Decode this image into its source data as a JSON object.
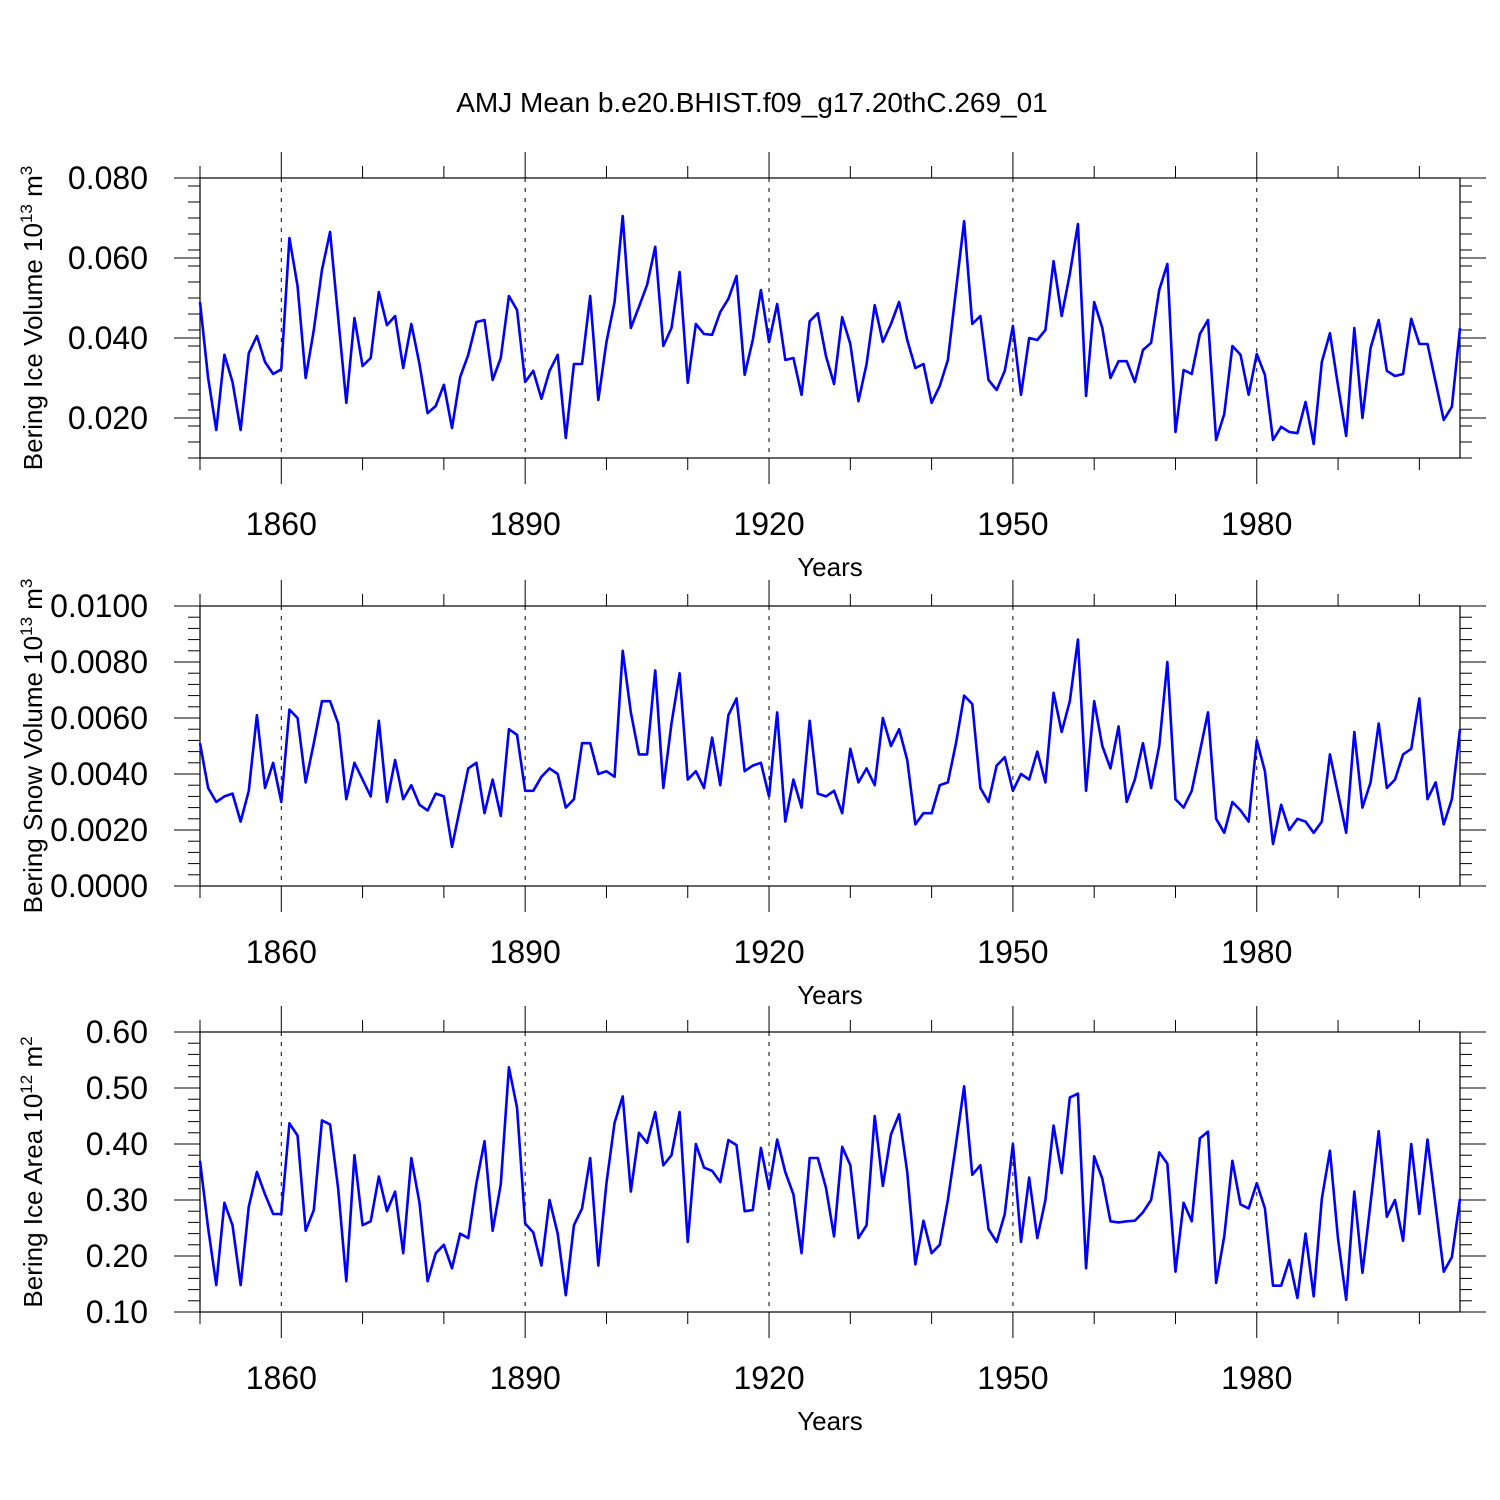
{
  "title": "AMJ Mean b.e20.BHIST.f09_g17.20thC.269_01",
  "colors": {
    "series": "#0000ff",
    "axis": "#000000"
  },
  "chart_data": [
    {
      "type": "line",
      "ylabel": "Bering Ice Volume 10",
      "ylabel_exp": "13",
      "ylabel_unit": " m",
      "ylabel_unit_exp": "3",
      "xlabel": "Years",
      "xlim": [
        1850,
        2005
      ],
      "ylim": [
        0.01,
        0.08
      ],
      "xticks": [
        1860,
        1890,
        1920,
        1950,
        1980
      ],
      "xtick_labels": [
        "1860",
        "1890",
        "1920",
        "1950",
        "1980"
      ],
      "yticks": [
        0.02,
        0.04,
        0.06,
        0.08
      ],
      "ytick_labels": [
        "0.020",
        "0.040",
        "0.060",
        "0.080"
      ],
      "x_start": 1850,
      "values": [
        0.049,
        0.03,
        0.017,
        0.0358,
        0.029,
        0.017,
        0.0362,
        0.0405,
        0.034,
        0.031,
        0.0322,
        0.065,
        0.053,
        0.03,
        0.042,
        0.057,
        0.0665,
        0.045,
        0.0238,
        0.045,
        0.033,
        0.035,
        0.0515,
        0.0432,
        0.0455,
        0.0325,
        0.0435,
        0.0335,
        0.0212,
        0.023,
        0.0283,
        0.0175,
        0.0302,
        0.0358,
        0.044,
        0.0445,
        0.0295,
        0.035,
        0.0505,
        0.047,
        0.029,
        0.0318,
        0.0248,
        0.0318,
        0.0358,
        0.015,
        0.0335,
        0.0335,
        0.0505,
        0.0245,
        0.039,
        0.049,
        0.0705,
        0.0425,
        0.0478,
        0.0533,
        0.0628,
        0.038,
        0.0425,
        0.0565,
        0.0288,
        0.0435,
        0.041,
        0.0408,
        0.0465,
        0.0498,
        0.0555,
        0.0308,
        0.0395,
        0.052,
        0.039,
        0.0485,
        0.0345,
        0.035,
        0.0258,
        0.0442,
        0.0462,
        0.0355,
        0.0285,
        0.0452,
        0.0385,
        0.0242,
        0.0335,
        0.0482,
        0.039,
        0.0435,
        0.049,
        0.0395,
        0.0325,
        0.0335,
        0.0238,
        0.028,
        0.0345,
        0.052,
        0.0692,
        0.0435,
        0.0455,
        0.0295,
        0.027,
        0.0318,
        0.043,
        0.0258,
        0.04,
        0.0395,
        0.042,
        0.0592,
        0.0455,
        0.056,
        0.0685,
        0.0255,
        0.049,
        0.0425,
        0.03,
        0.0342,
        0.0342,
        0.029,
        0.037,
        0.0388,
        0.052,
        0.0585,
        0.0165,
        0.032,
        0.031,
        0.041,
        0.0445,
        0.0145,
        0.021,
        0.038,
        0.0358,
        0.0258,
        0.036,
        0.0308,
        0.0145,
        0.0178,
        0.0165,
        0.0162,
        0.024,
        0.0135,
        0.034,
        0.0412,
        0.028,
        0.0155,
        0.0425,
        0.02,
        0.0375,
        0.0445,
        0.0318,
        0.0305,
        0.031,
        0.0448,
        0.0385,
        0.0385,
        0.029,
        0.0195,
        0.0228,
        0.0425
      ]
    },
    {
      "type": "line",
      "ylabel": "Bering Snow Volume 10",
      "ylabel_exp": "13",
      "ylabel_unit": " m",
      "ylabel_unit_exp": "3",
      "xlabel": "Years",
      "xlim": [
        1850,
        2005
      ],
      "ylim": [
        0.0,
        0.01
      ],
      "xticks": [
        1860,
        1890,
        1920,
        1950,
        1980
      ],
      "xtick_labels": [
        "1860",
        "1890",
        "1920",
        "1950",
        "1980"
      ],
      "yticks": [
        0.0,
        0.002,
        0.004,
        0.006,
        0.008,
        0.01
      ],
      "ytick_labels": [
        "0.0000",
        "0.0020",
        "0.0040",
        "0.0060",
        "0.0080",
        "0.0100"
      ],
      "x_start": 1850,
      "values": [
        0.0051,
        0.0035,
        0.003,
        0.0032,
        0.0033,
        0.0023,
        0.0034,
        0.0061,
        0.0035,
        0.0044,
        0.003,
        0.0063,
        0.006,
        0.0037,
        0.0051,
        0.0066,
        0.0066,
        0.0058,
        0.0031,
        0.0044,
        0.0038,
        0.0032,
        0.0059,
        0.003,
        0.0045,
        0.0031,
        0.0036,
        0.0029,
        0.0027,
        0.0033,
        0.0032,
        0.0014,
        0.0028,
        0.0042,
        0.0044,
        0.0026,
        0.0038,
        0.0025,
        0.0056,
        0.0054,
        0.0034,
        0.0034,
        0.0039,
        0.0042,
        0.004,
        0.0028,
        0.0031,
        0.0051,
        0.0051,
        0.004,
        0.0041,
        0.0039,
        0.0084,
        0.0062,
        0.0047,
        0.0047,
        0.0077,
        0.0035,
        0.0058,
        0.0076,
        0.0038,
        0.0041,
        0.0035,
        0.0053,
        0.0036,
        0.0061,
        0.0067,
        0.0041,
        0.0043,
        0.0044,
        0.0032,
        0.0062,
        0.0023,
        0.0038,
        0.0028,
        0.0059,
        0.0033,
        0.0032,
        0.0034,
        0.0026,
        0.0049,
        0.0037,
        0.0042,
        0.0036,
        0.006,
        0.005,
        0.0056,
        0.0045,
        0.0022,
        0.0026,
        0.0026,
        0.0036,
        0.0037,
        0.0051,
        0.0068,
        0.0065,
        0.0035,
        0.003,
        0.0043,
        0.0046,
        0.0034,
        0.004,
        0.0038,
        0.0048,
        0.0037,
        0.0069,
        0.0055,
        0.0066,
        0.0088,
        0.0034,
        0.0066,
        0.005,
        0.0042,
        0.0057,
        0.003,
        0.0038,
        0.0051,
        0.0035,
        0.005,
        0.008,
        0.0031,
        0.0028,
        0.0034,
        0.0048,
        0.0062,
        0.0024,
        0.0019,
        0.003,
        0.0027,
        0.0023,
        0.0052,
        0.0041,
        0.0015,
        0.0029,
        0.002,
        0.0024,
        0.0023,
        0.0019,
        0.0023,
        0.0047,
        0.0033,
        0.0019,
        0.0055,
        0.0028,
        0.0037,
        0.0058,
        0.0035,
        0.0038,
        0.0047,
        0.0049,
        0.0067,
        0.0031,
        0.0037,
        0.0022,
        0.0031,
        0.0056
      ]
    },
    {
      "type": "line",
      "ylabel": "Bering Ice Area 10",
      "ylabel_exp": "12",
      "ylabel_unit": " m",
      "ylabel_unit_exp": "2",
      "xlabel": "Years",
      "xlim": [
        1850,
        2005
      ],
      "ylim": [
        0.1,
        0.6
      ],
      "xticks": [
        1860,
        1890,
        1920,
        1950,
        1980
      ],
      "xtick_labels": [
        "1860",
        "1890",
        "1920",
        "1950",
        "1980"
      ],
      "yticks": [
        0.1,
        0.2,
        0.3,
        0.4,
        0.5,
        0.6
      ],
      "ytick_labels": [
        "0.10",
        "0.20",
        "0.30",
        "0.40",
        "0.50",
        "0.60"
      ],
      "x_start": 1850,
      "values": [
        0.37,
        0.25,
        0.148,
        0.295,
        0.255,
        0.148,
        0.288,
        0.35,
        0.31,
        0.275,
        0.275,
        0.437,
        0.415,
        0.245,
        0.282,
        0.442,
        0.435,
        0.32,
        0.155,
        0.38,
        0.255,
        0.262,
        0.342,
        0.28,
        0.315,
        0.205,
        0.375,
        0.295,
        0.155,
        0.205,
        0.22,
        0.178,
        0.24,
        0.232,
        0.33,
        0.405,
        0.245,
        0.328,
        0.537,
        0.465,
        0.258,
        0.242,
        0.183,
        0.3,
        0.24,
        0.13,
        0.255,
        0.285,
        0.375,
        0.183,
        0.33,
        0.438,
        0.485,
        0.315,
        0.42,
        0.402,
        0.457,
        0.362,
        0.38,
        0.457,
        0.225,
        0.4,
        0.358,
        0.352,
        0.332,
        0.407,
        0.398,
        0.28,
        0.282,
        0.393,
        0.32,
        0.408,
        0.35,
        0.31,
        0.205,
        0.375,
        0.375,
        0.322,
        0.235,
        0.395,
        0.362,
        0.232,
        0.255,
        0.45,
        0.325,
        0.417,
        0.453,
        0.35,
        0.185,
        0.263,
        0.205,
        0.22,
        0.3,
        0.4,
        0.503,
        0.345,
        0.362,
        0.248,
        0.225,
        0.275,
        0.4,
        0.225,
        0.34,
        0.232,
        0.3,
        0.433,
        0.348,
        0.483,
        0.49,
        0.178,
        0.378,
        0.338,
        0.262,
        0.26,
        0.262,
        0.263,
        0.278,
        0.3,
        0.385,
        0.365,
        0.172,
        0.295,
        0.262,
        0.41,
        0.422,
        0.152,
        0.235,
        0.37,
        0.292,
        0.285,
        0.33,
        0.285,
        0.147,
        0.147,
        0.193,
        0.125,
        0.24,
        0.128,
        0.302,
        0.388,
        0.23,
        0.122,
        0.315,
        0.17,
        0.295,
        0.423,
        0.27,
        0.3,
        0.227,
        0.4,
        0.275,
        0.408,
        0.29,
        0.172,
        0.198,
        0.302
      ]
    }
  ]
}
